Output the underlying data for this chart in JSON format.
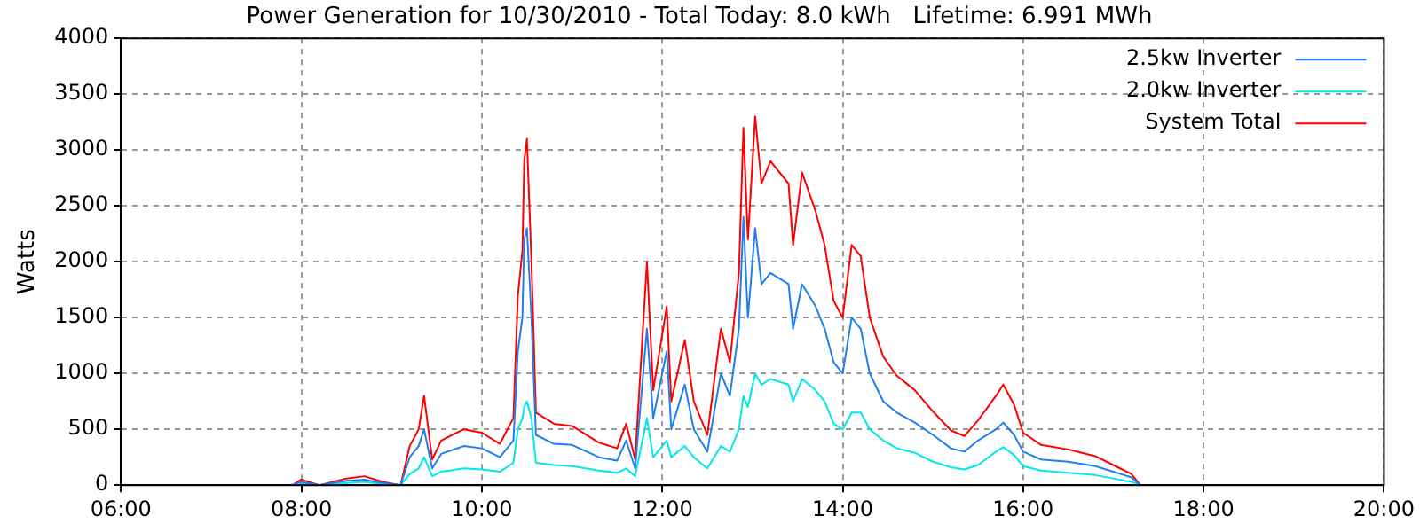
{
  "chart_data": {
    "type": "line",
    "title": "Power Generation for 10/30/2010 - Total Today: 8.0 kWh   Lifetime: 6.991 MWh",
    "ylabel": "Watts",
    "x": [
      7.9,
      8.0,
      8.2,
      8.5,
      8.7,
      8.9,
      9.1,
      9.2,
      9.3,
      9.36,
      9.45,
      9.55,
      9.8,
      10.0,
      10.2,
      10.35,
      10.4,
      10.45,
      10.47,
      10.5,
      10.55,
      10.6,
      10.8,
      11.0,
      11.3,
      11.5,
      11.6,
      11.7,
      11.83,
      11.9,
      12.05,
      12.1,
      12.25,
      12.35,
      12.5,
      12.65,
      12.75,
      12.85,
      12.9,
      12.95,
      13.03,
      13.1,
      13.2,
      13.4,
      13.45,
      13.55,
      13.7,
      13.8,
      13.9,
      14.0,
      14.1,
      14.2,
      14.3,
      14.45,
      14.6,
      14.8,
      15.0,
      15.2,
      15.35,
      15.5,
      15.7,
      15.78,
      15.9,
      16.0,
      16.2,
      16.5,
      16.8,
      17.0,
      17.2,
      17.3
    ],
    "series": [
      {
        "name": "2.5kw Inverter",
        "color": "#1e80f0",
        "values": [
          0,
          30,
          0,
          40,
          50,
          20,
          0,
          250,
          350,
          500,
          150,
          280,
          350,
          330,
          250,
          400,
          1200,
          1500,
          2200,
          2300,
          1500,
          450,
          370,
          360,
          250,
          220,
          400,
          150,
          1400,
          600,
          1200,
          500,
          900,
          500,
          300,
          1000,
          800,
          1400,
          2400,
          1500,
          2300,
          1800,
          1900,
          1800,
          1400,
          1800,
          1600,
          1400,
          1100,
          1000,
          1500,
          1400,
          1000,
          750,
          650,
          560,
          450,
          330,
          300,
          400,
          500,
          560,
          450,
          300,
          230,
          210,
          170,
          120,
          70,
          0
        ]
      },
      {
        "name": "2.0kw Inverter",
        "color": "#00e8e8",
        "values": [
          0,
          20,
          0,
          20,
          30,
          10,
          0,
          100,
          150,
          250,
          80,
          120,
          150,
          140,
          120,
          200,
          500,
          600,
          700,
          750,
          600,
          200,
          180,
          170,
          130,
          110,
          150,
          80,
          600,
          250,
          400,
          250,
          350,
          250,
          150,
          350,
          300,
          500,
          800,
          700,
          1000,
          900,
          950,
          900,
          750,
          950,
          850,
          750,
          550,
          500,
          650,
          650,
          500,
          400,
          330,
          290,
          210,
          160,
          140,
          180,
          300,
          340,
          270,
          170,
          130,
          110,
          90,
          60,
          30,
          0
        ]
      },
      {
        "name": "System Total",
        "color": "#ff0000",
        "values": [
          0,
          50,
          0,
          60,
          80,
          30,
          0,
          350,
          500,
          800,
          230,
          400,
          500,
          470,
          370,
          600,
          1700,
          2100,
          2900,
          3100,
          2000,
          650,
          550,
          530,
          380,
          330,
          550,
          230,
          2000,
          850,
          1600,
          750,
          1300,
          750,
          450,
          1400,
          1100,
          1900,
          3200,
          2200,
          3300,
          2700,
          2900,
          2700,
          2150,
          2800,
          2450,
          2150,
          1650,
          1500,
          2150,
          2050,
          1500,
          1150,
          980,
          850,
          660,
          490,
          440,
          580,
          800,
          900,
          720,
          470,
          360,
          320,
          260,
          180,
          100,
          0
        ]
      }
    ],
    "xlim": [
      6,
      20
    ],
    "xticks": [
      {
        "value": 6,
        "label": "06:00"
      },
      {
        "value": 8,
        "label": "08:00"
      },
      {
        "value": 10,
        "label": "10:00"
      },
      {
        "value": 12,
        "label": "12:00"
      },
      {
        "value": 14,
        "label": "14:00"
      },
      {
        "value": 16,
        "label": "16:00"
      },
      {
        "value": 18,
        "label": "18:00"
      },
      {
        "value": 20,
        "label": "20:00"
      }
    ],
    "ylim": [
      0,
      4000
    ],
    "yticks": [
      0,
      500,
      1000,
      1500,
      2000,
      2500,
      3000,
      3500,
      4000
    ],
    "grid": true,
    "legend": "top right",
    "marker": "none",
    "line_style": "solid"
  }
}
